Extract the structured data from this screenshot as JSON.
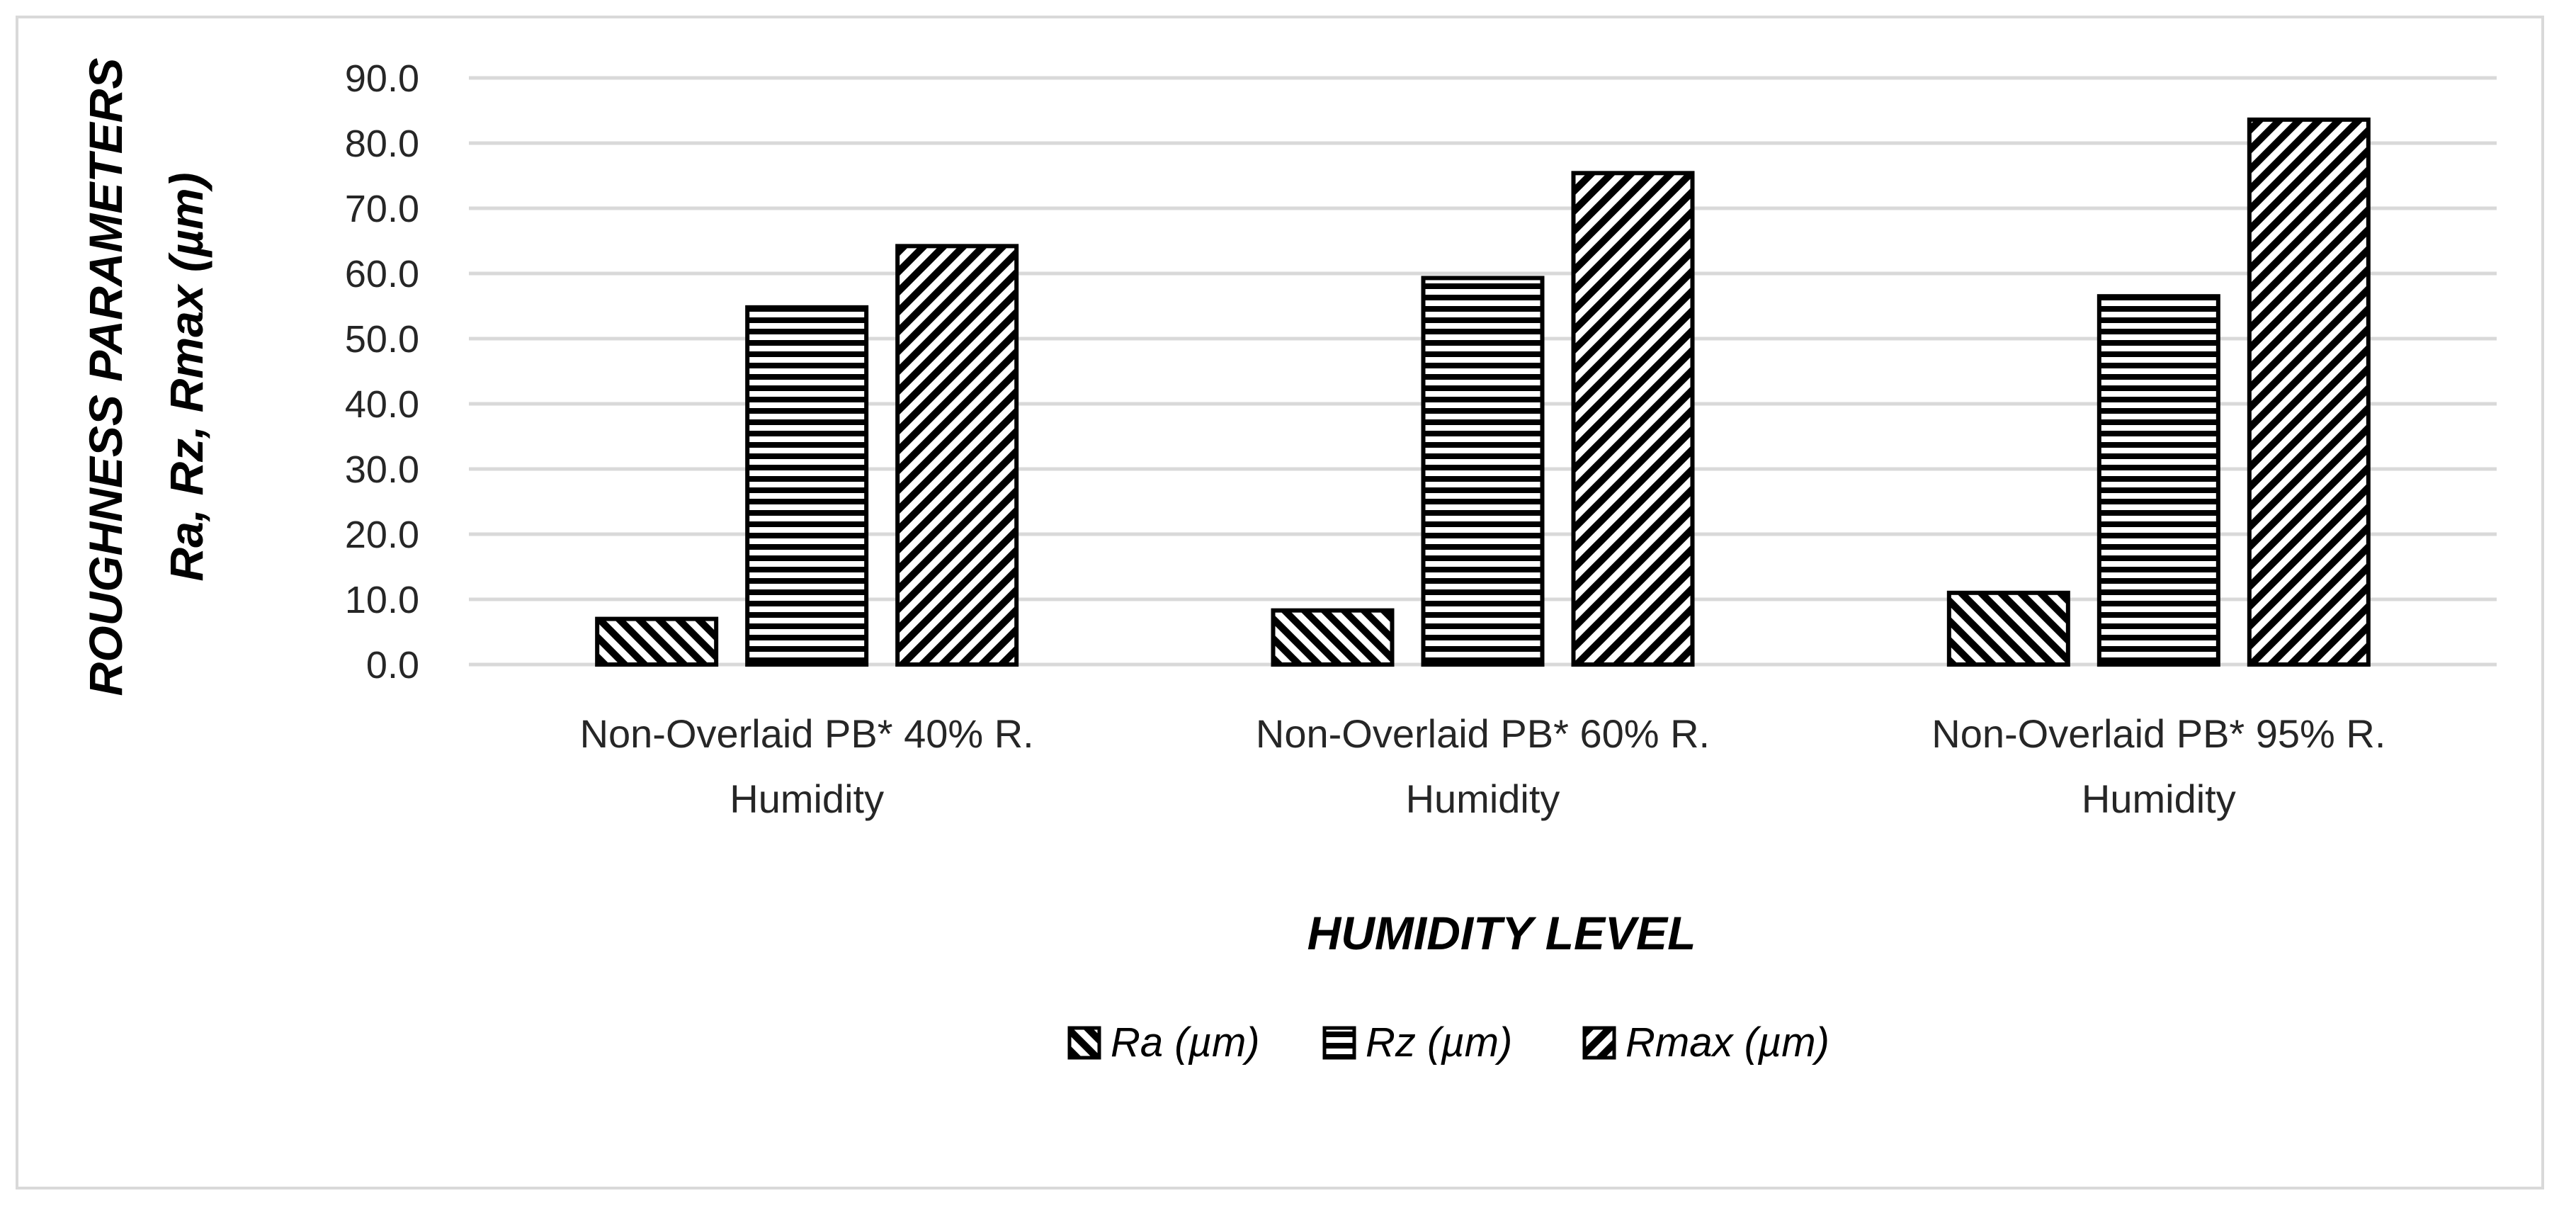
{
  "chart_data": {
    "type": "bar",
    "title": "",
    "xlabel": "HUMIDITY LEVEL",
    "ylabel_line1": "ROUGHNESS PARAMETERS",
    "ylabel_line2": "Ra, Rz, Rmax (µm)",
    "ylim": [
      0,
      90
    ],
    "ytick_step": 10,
    "ytick_labels": [
      "0.0",
      "10.0",
      "20.0",
      "30.0",
      "40.0",
      "50.0",
      "60.0",
      "70.0",
      "80.0",
      "90.0"
    ],
    "grid": true,
    "legend_position": "bottom",
    "categories": [
      [
        "Non-Overlaid PB* 40% R.",
        "Humidity"
      ],
      [
        "Non-Overlaid PB* 60% R.",
        "Humidity"
      ],
      [
        "Non-Overlaid PB* 95% R.",
        "Humidity"
      ]
    ],
    "series": [
      {
        "name": "Ra (µm)",
        "pattern": "diag-down",
        "values": [
          7.0,
          8.3,
          11.0
        ]
      },
      {
        "name": "Rz (µm)",
        "pattern": "horizontal",
        "values": [
          54.8,
          59.3,
          56.5
        ]
      },
      {
        "name": "Rmax (µm)",
        "pattern": "diag-up",
        "values": [
          64.2,
          75.4,
          83.6
        ]
      }
    ]
  },
  "colors": {
    "bar_stroke": "#000000",
    "bar_fill": "#ffffff",
    "gridline": "#d9d9d9",
    "text": "#262626"
  }
}
